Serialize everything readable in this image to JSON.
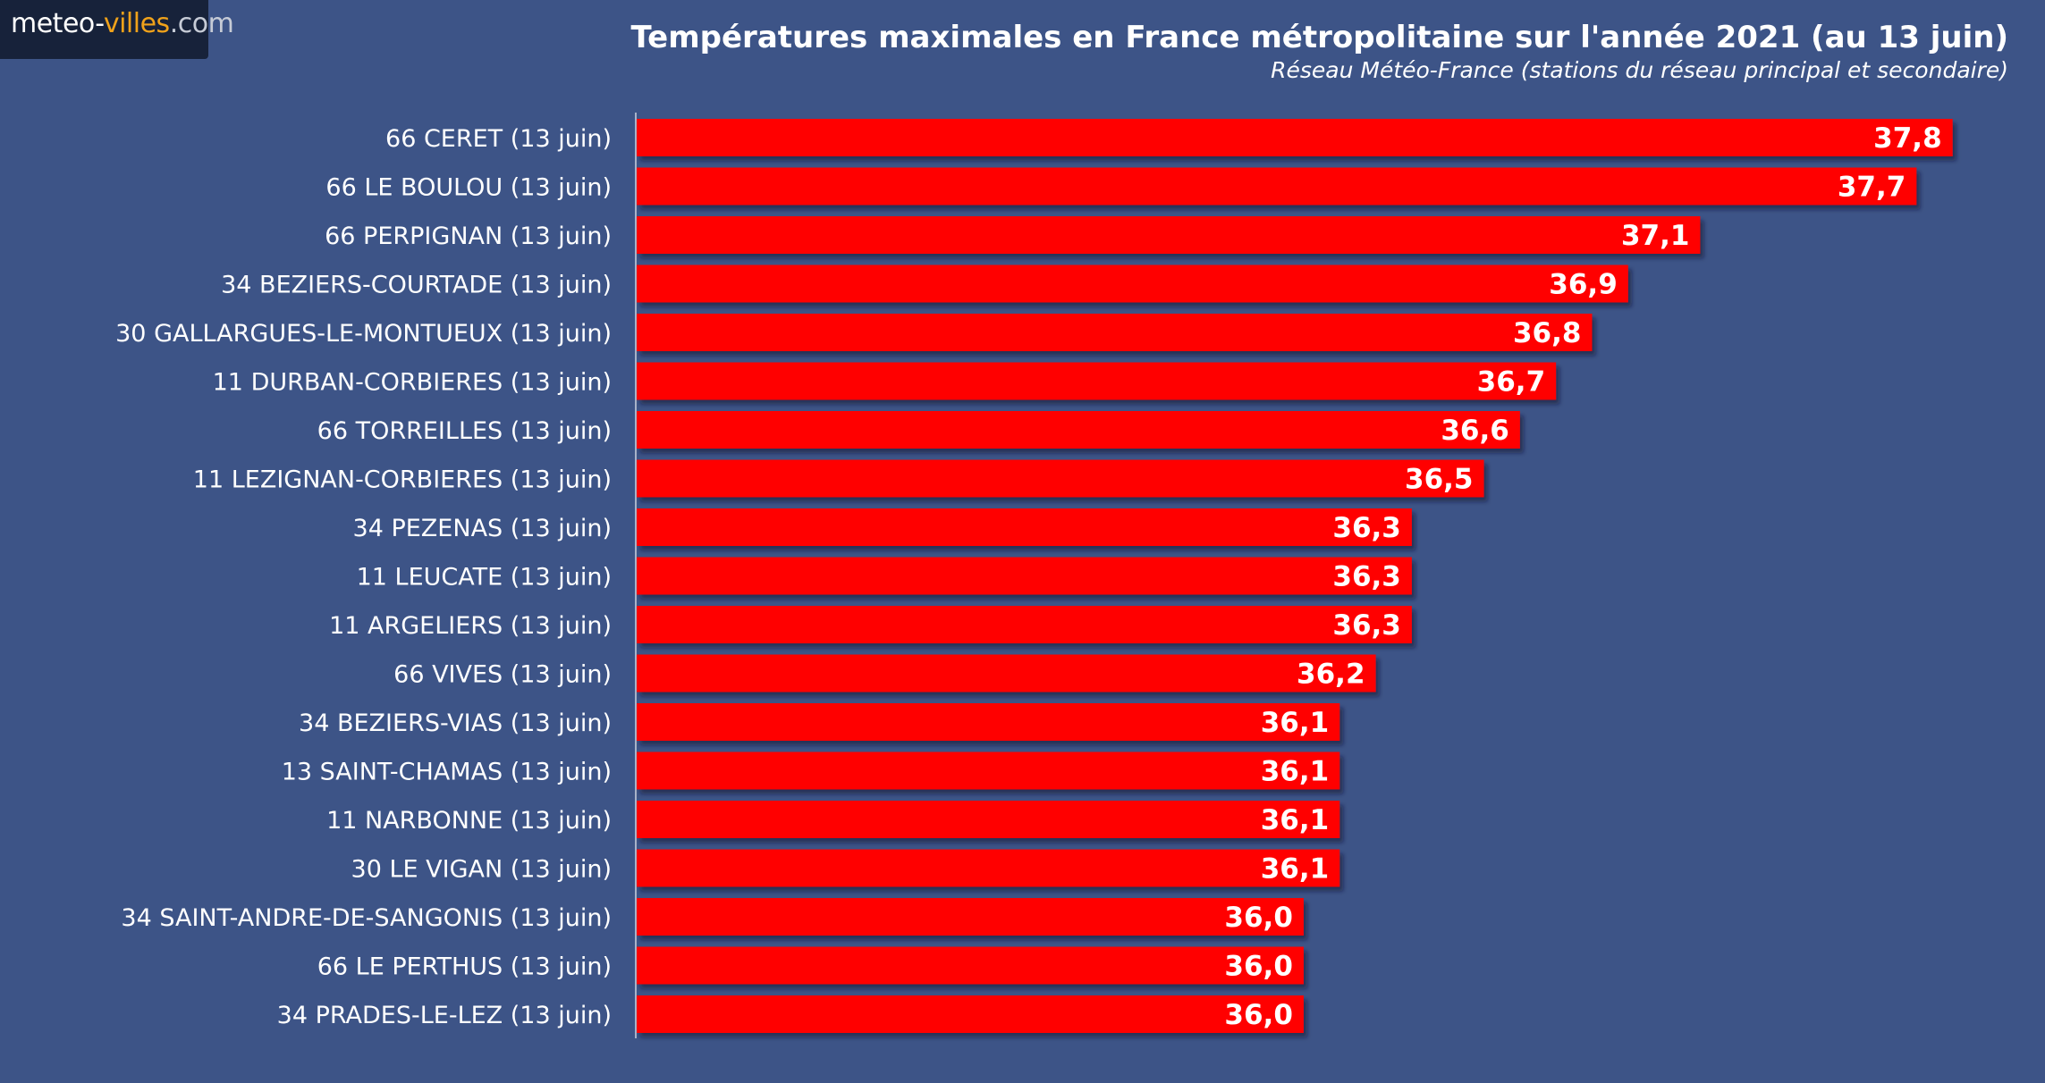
{
  "logo": {
    "part1": "meteo-",
    "part2": "villes",
    "part3": ".com"
  },
  "colors": {
    "background": "#3d5487",
    "bar": "#ff0000",
    "text": "#ffffff"
  },
  "chart_data": {
    "type": "bar",
    "orientation": "horizontal",
    "title": "Températures maximales en France métropolitaine sur l'année 2021 (au 13 juin)",
    "subtitle": "Réseau Météo-France (stations du réseau principal et secondaire)",
    "xlim": [
      34.15,
      37.9
    ],
    "grid": false,
    "categories": [
      "66 CERET (13 juin)",
      "66 LE BOULOU (13 juin)",
      "66 PERPIGNAN (13 juin)",
      "34 BEZIERS-COURTADE (13 juin)",
      "30 GALLARGUES-LE-MONTUEUX (13 juin)",
      "11 DURBAN-CORBIERES (13 juin)",
      "66 TORREILLES (13 juin)",
      "11 LEZIGNAN-CORBIERES (13 juin)",
      "34 PEZENAS (13 juin)",
      "11 LEUCATE (13 juin)",
      "11 ARGELIERS (13 juin)",
      "66 VIVES (13 juin)",
      "34 BEZIERS-VIAS (13 juin)",
      "13 SAINT-CHAMAS (13 juin)",
      "11 NARBONNE (13 juin)",
      "30 LE VIGAN (13 juin)",
      "34 SAINT-ANDRE-DE-SANGONIS (13 juin)",
      "66 LE PERTHUS (13 juin)",
      "34 PRADES-LE-LEZ (13 juin)"
    ],
    "values": [
      37.8,
      37.7,
      37.1,
      36.9,
      36.8,
      36.7,
      36.6,
      36.5,
      36.3,
      36.3,
      36.3,
      36.2,
      36.1,
      36.1,
      36.1,
      36.1,
      36.0,
      36.0,
      36.0
    ],
    "value_labels": [
      "37,8",
      "37,7",
      "37,1",
      "36,9",
      "36,8",
      "36,7",
      "36,6",
      "36,5",
      "36,3",
      "36,3",
      "36,3",
      "36,2",
      "36,1",
      "36,1",
      "36,1",
      "36,1",
      "36,0",
      "36,0",
      "36,0"
    ]
  }
}
